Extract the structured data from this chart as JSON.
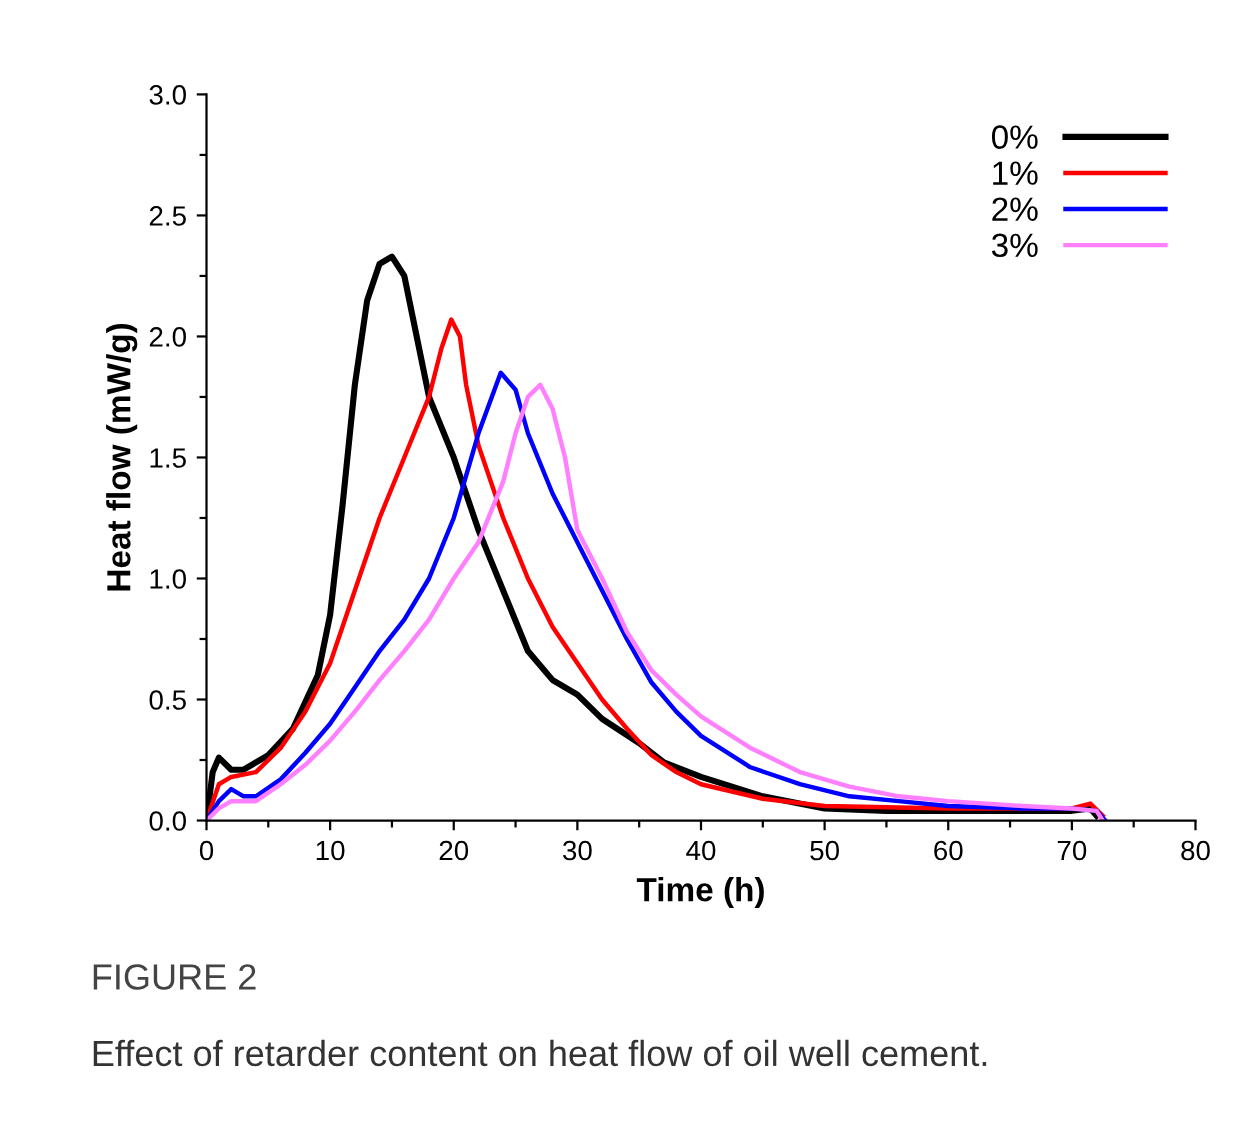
{
  "chart_data": {
    "type": "line",
    "xlabel": "Time (h)",
    "ylabel": "Heat flow (mW/g)",
    "xlim": [
      0,
      80
    ],
    "ylim": [
      0,
      3.0
    ],
    "xticks": [
      0,
      {
        "value": 5,
        "label": null
      },
      10,
      {
        "value": 15,
        "label": null
      },
      20,
      {
        "value": 25,
        "label": null
      },
      30,
      {
        "value": 35,
        "label": null
      },
      40,
      {
        "value": 45,
        "label": null
      },
      50,
      {
        "value": 55,
        "label": null
      },
      60,
      {
        "value": 65,
        "label": null
      },
      70,
      {
        "value": 75,
        "label": null
      },
      80
    ],
    "yticks": [
      {
        "value": 0,
        "label": "0.0"
      },
      {
        "value": 0.25,
        "label": null
      },
      {
        "value": 0.5,
        "label": "0.5"
      },
      {
        "value": 0.75,
        "label": null
      },
      {
        "value": 1.0,
        "label": "1.0"
      },
      {
        "value": 1.25,
        "label": null
      },
      {
        "value": 1.5,
        "label": "1.5"
      },
      {
        "value": 1.75,
        "label": null
      },
      {
        "value": 2.0,
        "label": "2.0"
      },
      {
        "value": 2.25,
        "label": null
      },
      {
        "value": 2.5,
        "label": "2.5"
      },
      {
        "value": 2.75,
        "label": null
      },
      {
        "value": 3.0,
        "label": "3.0"
      }
    ],
    "grid": false,
    "legend": "top right",
    "line_style": "solid",
    "marker": "none",
    "series": [
      {
        "name": "0%",
        "color": "#000000",
        "x": [
          0,
          0.5,
          1,
          2,
          3,
          5,
          7,
          9,
          10,
          11,
          12,
          13,
          14,
          15,
          16,
          17,
          18,
          20,
          22,
          24,
          26,
          28,
          30,
          32,
          35,
          37,
          40,
          45,
          50,
          55,
          60,
          65,
          70,
          71.5,
          72
        ],
        "values": [
          0,
          0.2,
          0.26,
          0.21,
          0.21,
          0.27,
          0.38,
          0.6,
          0.85,
          1.3,
          1.8,
          2.15,
          2.3,
          2.33,
          2.25,
          2.0,
          1.75,
          1.5,
          1.2,
          0.95,
          0.7,
          0.58,
          0.52,
          0.42,
          0.32,
          0.24,
          0.18,
          0.1,
          0.05,
          0.04,
          0.04,
          0.04,
          0.04,
          0.05,
          0.02
        ]
      },
      {
        "name": "1%",
        "color": "#ff0000",
        "x": [
          0,
          1,
          2,
          4,
          6,
          8,
          10,
          12,
          14,
          16,
          18,
          19,
          19.8,
          20.5,
          21,
          22,
          24,
          26,
          28,
          30,
          32,
          34,
          36,
          38,
          40,
          45,
          50,
          60,
          70,
          71.5,
          72.5
        ],
        "values": [
          0,
          0.15,
          0.18,
          0.2,
          0.3,
          0.45,
          0.65,
          0.95,
          1.25,
          1.5,
          1.75,
          1.95,
          2.07,
          2.0,
          1.8,
          1.55,
          1.25,
          1.0,
          0.8,
          0.65,
          0.5,
          0.38,
          0.27,
          0.2,
          0.15,
          0.09,
          0.06,
          0.05,
          0.05,
          0.07,
          0.02
        ]
      },
      {
        "name": "2%",
        "color": "#0000ff",
        "x": [
          0,
          1,
          2,
          3,
          4,
          6,
          8,
          10,
          12,
          14,
          16,
          18,
          20,
          22,
          23.8,
          25,
          26,
          28,
          30,
          32,
          34,
          36,
          38,
          40,
          44,
          48,
          52,
          56,
          60,
          66,
          70,
          72,
          72.7
        ],
        "values": [
          0,
          0.08,
          0.13,
          0.1,
          0.1,
          0.17,
          0.28,
          0.4,
          0.55,
          0.7,
          0.83,
          1.0,
          1.25,
          1.6,
          1.85,
          1.78,
          1.6,
          1.35,
          1.15,
          0.95,
          0.75,
          0.57,
          0.45,
          0.35,
          0.22,
          0.15,
          0.1,
          0.08,
          0.06,
          0.05,
          0.05,
          0.04,
          0.0
        ]
      },
      {
        "name": "3%",
        "color": "#ff80ff",
        "x": [
          0,
          1,
          2,
          4,
          6,
          8,
          10,
          12,
          14,
          16,
          18,
          20,
          22,
          24,
          25,
          26,
          27,
          28,
          29,
          30,
          32,
          34,
          36,
          38,
          40,
          44,
          48,
          52,
          56,
          60,
          66,
          70,
          72,
          72.5
        ],
        "values": [
          0,
          0.05,
          0.08,
          0.08,
          0.15,
          0.23,
          0.33,
          0.45,
          0.58,
          0.7,
          0.83,
          1.0,
          1.15,
          1.4,
          1.6,
          1.75,
          1.8,
          1.7,
          1.5,
          1.2,
          1.0,
          0.78,
          0.62,
          0.52,
          0.43,
          0.3,
          0.2,
          0.14,
          0.1,
          0.08,
          0.06,
          0.05,
          0.04,
          0.0
        ]
      }
    ],
    "annotations": [
      "FIGURE 2",
      "Effect of retarder content on heat flow of oil well cement."
    ]
  }
}
